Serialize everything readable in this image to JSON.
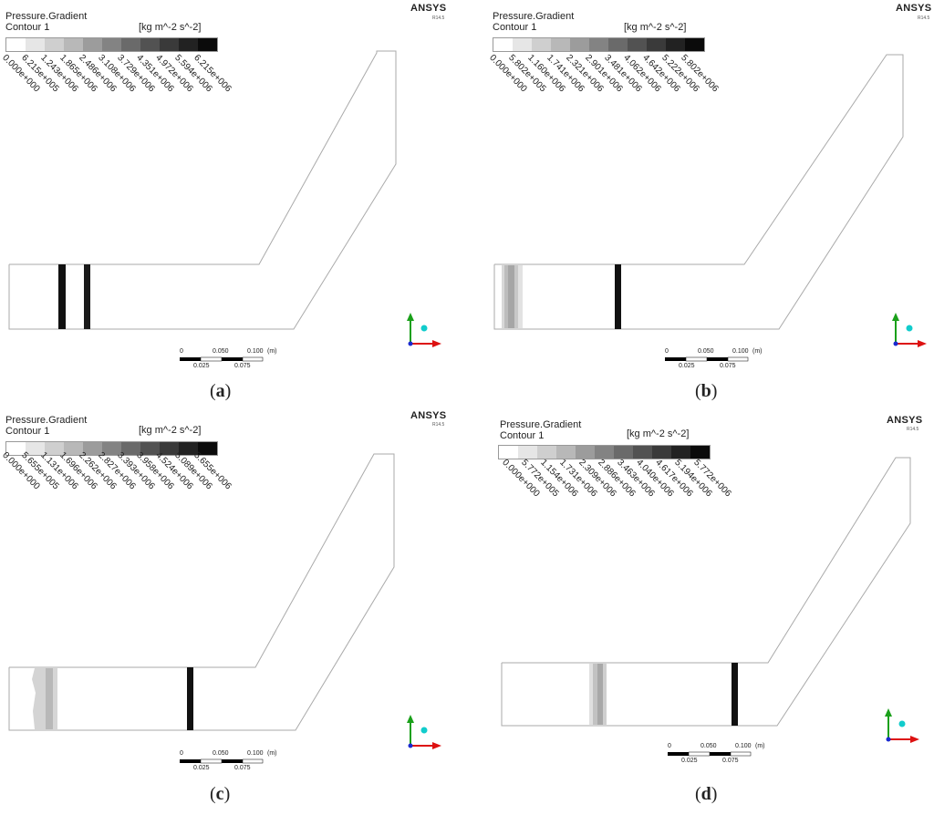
{
  "panels": [
    {
      "id": "a",
      "title": "Pressure.Gradient",
      "subtitle": "Contour 1",
      "unit": "[kg m^-2 s^-2]",
      "brand": "ANSYS",
      "release": "R14.5",
      "ticks": [
        "0.000e+000",
        "6.215e+005",
        "1.243e+006",
        "1.865e+006",
        "2.486e+006",
        "3.108e+006",
        "3.729e+006",
        "4.351e+006",
        "4.972e+006",
        "5.594e+006",
        "6.215e+006"
      ],
      "caption": "a"
    },
    {
      "id": "b",
      "title": "Pressure.Gradient",
      "subtitle": "Contour 1",
      "unit": "[kg m^-2 s^-2]",
      "brand": "ANSYS",
      "release": "R14.5",
      "ticks": [
        "0.000e+000",
        "5.802e+005",
        "1.160e+006",
        "1.741e+006",
        "2.321e+006",
        "2.901e+006",
        "3.481e+006",
        "4.062e+006",
        "4.642e+006",
        "5.222e+006",
        "5.802e+006"
      ],
      "caption": "b"
    },
    {
      "id": "c",
      "title": "Pressure.Gradient",
      "subtitle": "Contour 1",
      "unit": "[kg m^-2 s^-2]",
      "brand": "ANSYS",
      "release": "R14.5",
      "ticks": [
        "0.000e+000",
        "5.655e+005",
        "1.131e+006",
        "1.696e+006",
        "2.262e+006",
        "2.827e+006",
        "3.393e+006",
        "3.958e+006",
        "4.524e+006",
        "5.089e+006",
        "5.655e+006"
      ],
      "caption": "c"
    },
    {
      "id": "d",
      "title": "Pressure.Gradient",
      "subtitle": "Contour 1",
      "unit": "[kg m^-2 s^-2]",
      "brand": "ANSYS",
      "release": "R14.5",
      "ticks": [
        "0.000e+000",
        "5.772e+005",
        "1.154e+006",
        "1.731e+006",
        "2.309e+006",
        "2.886e+006",
        "3.463e+006",
        "4.040e+006",
        "4.617e+006",
        "5.194e+006",
        "5.772e+006"
      ],
      "caption": "d"
    }
  ],
  "scale_bar": {
    "top_labels": [
      "0",
      "0.050",
      "0.100",
      "(m)"
    ],
    "bottom_labels": [
      "0.025",
      "0.075"
    ]
  },
  "colormap": [
    "#ffffff",
    "#e6e6e6",
    "#cfcfcf",
    "#b8b8b8",
    "#9c9c9c",
    "#838383",
    "#6a6a6a",
    "#525252",
    "#3a3a3a",
    "#222222",
    "#0b0b0b"
  ]
}
